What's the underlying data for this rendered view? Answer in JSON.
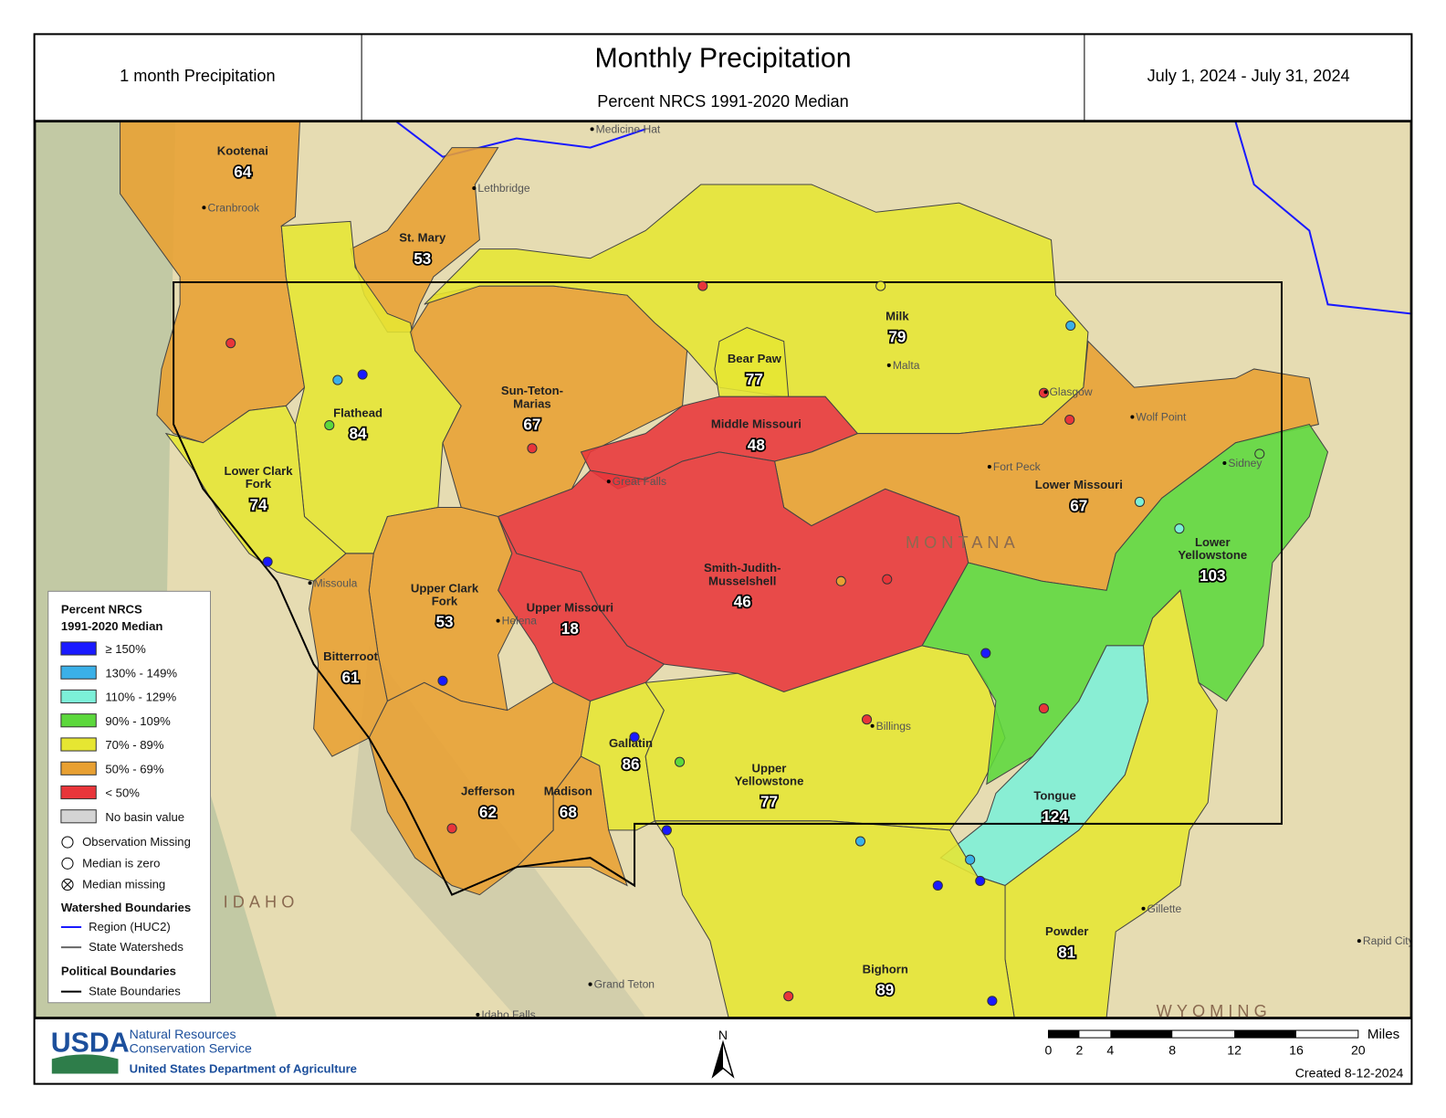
{
  "header": {
    "left": "1 month Precipitation",
    "title": "Monthly Precipitation",
    "subtitle": "Percent NRCS 1991-2020 Median",
    "date": "July 1, 2024 - July 31, 2024"
  },
  "basins": [
    {
      "name_lines": [
        "Kootenai"
      ],
      "value": 64,
      "color": "#e8a032"
    },
    {
      "name_lines": [
        "St. Mary"
      ],
      "value": 53,
      "color": "#e8a032"
    },
    {
      "name_lines": [
        "Flathead"
      ],
      "value": 84,
      "color": "#e6e632"
    },
    {
      "name_lines": [
        "Lower Clark",
        "Fork"
      ],
      "value": 74,
      "color": "#e6e632"
    },
    {
      "name_lines": [
        "Sun-Teton-",
        "Marias"
      ],
      "value": 67,
      "color": "#e8a032"
    },
    {
      "name_lines": [
        "Milk"
      ],
      "value": 79,
      "color": "#e6e632"
    },
    {
      "name_lines": [
        "Bear Paw"
      ],
      "value": 77,
      "color": "#e6e632"
    },
    {
      "name_lines": [
        "Middle Missouri"
      ],
      "value": 48,
      "color": "#e8353a"
    },
    {
      "name_lines": [
        "Lower Missouri"
      ],
      "value": 67,
      "color": "#e8a032"
    },
    {
      "name_lines": [
        "Smith-Judith-",
        "Musselshell"
      ],
      "value": 46,
      "color": "#e8353a"
    },
    {
      "name_lines": [
        "Upper Missouri"
      ],
      "value": 18,
      "color": "#e8353a"
    },
    {
      "name_lines": [
        "Upper Clark",
        "Fork"
      ],
      "value": 53,
      "color": "#e8a032"
    },
    {
      "name_lines": [
        "Bitterroot"
      ],
      "value": 61,
      "color": "#e8a032"
    },
    {
      "name_lines": [
        "Jefferson"
      ],
      "value": 62,
      "color": "#e8a032"
    },
    {
      "name_lines": [
        "Madison"
      ],
      "value": 68,
      "color": "#e8a032"
    },
    {
      "name_lines": [
        "Gallatin"
      ],
      "value": 86,
      "color": "#e6e632"
    },
    {
      "name_lines": [
        "Upper",
        "Yellowstone"
      ],
      "value": 77,
      "color": "#e6e632"
    },
    {
      "name_lines": [
        "Lower",
        "Yellowstone"
      ],
      "value": 103,
      "color": "#5cd83c"
    },
    {
      "name_lines": [
        "Tongue"
      ],
      "value": 124,
      "color": "#7cf0d8"
    },
    {
      "name_lines": [
        "Powder"
      ],
      "value": 81,
      "color": "#e6e632"
    },
    {
      "name_lines": [
        "Bighorn"
      ],
      "value": 89,
      "color": "#e6e632"
    }
  ],
  "places": [
    "Medicine Hat",
    "Lethbridge",
    "Cranbrook",
    "Malta",
    "Glasgow",
    "Wolf Point",
    "Sidney",
    "Great Falls",
    "Helena",
    "Missoula",
    "Billings",
    "Gillette",
    "Rapid City",
    "Grand Teton",
    "Idaho Falls",
    "Fort Peck",
    "MONTANA",
    "IDAHO",
    "WYOMING"
  ],
  "legend": {
    "title_lines": [
      "Percent NRCS",
      "1991-2020 Median"
    ],
    "classes": [
      {
        "label": "≥ 150%",
        "color": "#1a1aff"
      },
      {
        "label": "130% - 149%",
        "color": "#3ab0e8"
      },
      {
        "label": "110% - 129%",
        "color": "#7cf0d8"
      },
      {
        "label": "90% - 109%",
        "color": "#5cd83c"
      },
      {
        "label": "70% - 89%",
        "color": "#e6e632"
      },
      {
        "label": "50% - 69%",
        "color": "#e8a032"
      },
      {
        "label": "< 50%",
        "color": "#e8353a"
      },
      {
        "label": "No basin value",
        "color": "#d4d4d4"
      }
    ],
    "symbols": [
      "Observation Missing",
      "Median is zero",
      "Median missing"
    ],
    "watershed_title": "Watershed Boundaries",
    "watershed_items": [
      "Region (HUC2)",
      "State Watersheds"
    ],
    "political_title": "Political Boundaries",
    "political_items": [
      "State Boundaries"
    ]
  },
  "footer": {
    "agency": "USDA",
    "org_lines": [
      "Natural Resources",
      "Conservation Service"
    ],
    "department": "United States Department of Agriculture",
    "north": "N",
    "scale_unit": "Miles",
    "scale_ticks": [
      0,
      2,
      4,
      8,
      12,
      16,
      20
    ],
    "created": "Created 8-12-2024"
  }
}
